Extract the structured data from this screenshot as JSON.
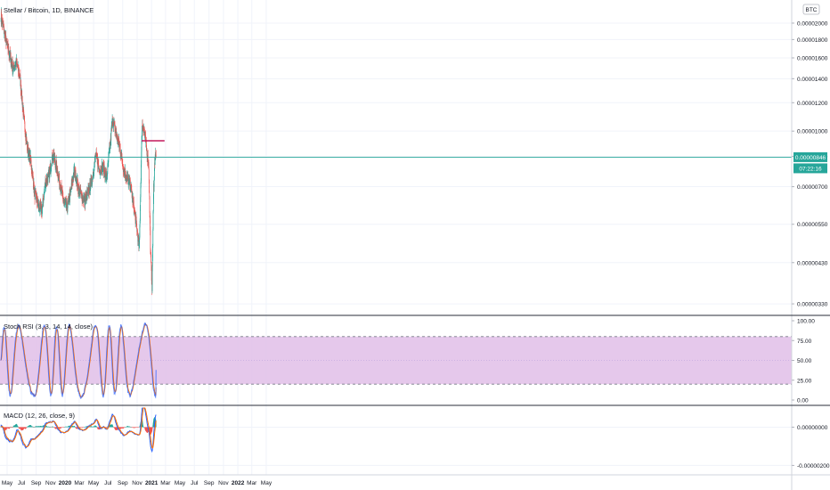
{
  "header": {
    "symbol_title": "Stellar / Bitcoin, 1D, BINANCE",
    "currency_badge": "BTC"
  },
  "price_pane": {
    "current_price_label": "0.00000846",
    "countdown_label": "07:22:16",
    "colors": {
      "up": "#26a69a",
      "down": "#ef5350",
      "price_line": "#26a69a",
      "drawing": "#c2185b"
    }
  },
  "stoch_pane": {
    "title": "Stoch RSI (3, 3, 14, 14, close)",
    "colors": {
      "k": "#2962ff",
      "d": "#ff6d00",
      "band_fill": "#e1bee7"
    }
  },
  "macd_pane": {
    "title": "MACD (12, 26, close, 9)",
    "colors": {
      "macd": "#2962ff",
      "signal": "#ff6d00",
      "hist_up": "#26a69a",
      "hist_down": "#ef5350"
    }
  },
  "chart_data": [
    {
      "type": "candlestick",
      "title": "Stellar / Bitcoin, 1D, BINANCE",
      "x_axis_ticks": [
        "May",
        "Jul",
        "Sep",
        "Nov",
        "2020",
        "Mar",
        "May",
        "Jul",
        "Sep",
        "Nov",
        "2021",
        "Mar",
        "May",
        "Jul",
        "Sep",
        "Nov",
        "2022",
        "Mar",
        "May"
      ],
      "y_axis_ticks": [
        "0.00000330",
        "0.00000430",
        "0.00000550",
        "0.00000700",
        "0.00000850",
        "0.00001000",
        "0.00001200",
        "0.00001400",
        "0.00001600",
        "0.00001800",
        "0.00002000"
      ],
      "y_scale": "log",
      "ylim": [
        3.1e-06,
        2.32e-05
      ],
      "current_price": 8.46e-06,
      "series_close": [
        {
          "x": "2019-04-05",
          "y": 2.1e-05
        },
        {
          "x": "2019-04-25",
          "y": 1.8e-05
        },
        {
          "x": "2019-05-10",
          "y": 1.65e-05
        },
        {
          "x": "2019-05-25",
          "y": 1.5e-05
        },
        {
          "x": "2019-06-10",
          "y": 1.55e-05
        },
        {
          "x": "2019-06-25",
          "y": 1.4e-05
        },
        {
          "x": "2019-07-10",
          "y": 1.1e-05
        },
        {
          "x": "2019-07-25",
          "y": 9e-06
        },
        {
          "x": "2019-08-10",
          "y": 8.2e-06
        },
        {
          "x": "2019-08-25",
          "y": 6.7e-06
        },
        {
          "x": "2019-09-10",
          "y": 6.2e-06
        },
        {
          "x": "2019-09-25",
          "y": 6e-06
        },
        {
          "x": "2019-10-10",
          "y": 7.2e-06
        },
        {
          "x": "2019-10-25",
          "y": 7.5e-06
        },
        {
          "x": "2019-11-10",
          "y": 8.6e-06
        },
        {
          "x": "2019-11-25",
          "y": 8e-06
        },
        {
          "x": "2019-12-10",
          "y": 7.2e-06
        },
        {
          "x": "2019-12-25",
          "y": 6.4e-06
        },
        {
          "x": "2020-01-10",
          "y": 6.1e-06
        },
        {
          "x": "2020-01-25",
          "y": 6.8e-06
        },
        {
          "x": "2020-02-10",
          "y": 7.8e-06
        },
        {
          "x": "2020-02-25",
          "y": 7e-06
        },
        {
          "x": "2020-03-10",
          "y": 6.6e-06
        },
        {
          "x": "2020-03-25",
          "y": 6.4e-06
        },
        {
          "x": "2020-04-10",
          "y": 6.8e-06
        },
        {
          "x": "2020-04-25",
          "y": 7.4e-06
        },
        {
          "x": "2020-05-10",
          "y": 8.6e-06
        },
        {
          "x": "2020-05-25",
          "y": 7.8e-06
        },
        {
          "x": "2020-06-10",
          "y": 8e-06
        },
        {
          "x": "2020-06-25",
          "y": 7.4e-06
        },
        {
          "x": "2020-07-10",
          "y": 9.2e-06
        },
        {
          "x": "2020-07-20",
          "y": 1.08e-05
        },
        {
          "x": "2020-08-05",
          "y": 9.8e-06
        },
        {
          "x": "2020-08-20",
          "y": 9e-06
        },
        {
          "x": "2020-09-05",
          "y": 7.8e-06
        },
        {
          "x": "2020-09-20",
          "y": 7.4e-06
        },
        {
          "x": "2020-10-05",
          "y": 7e-06
        },
        {
          "x": "2020-10-20",
          "y": 6e-06
        },
        {
          "x": "2020-11-01",
          "y": 5.3e-06
        },
        {
          "x": "2020-11-10",
          "y": 4.7e-06
        },
        {
          "x": "2020-11-22",
          "y": 1.05e-05
        },
        {
          "x": "2020-12-01",
          "y": 1e-05
        },
        {
          "x": "2020-12-10",
          "y": 9e-06
        },
        {
          "x": "2020-12-20",
          "y": 8e-06
        },
        {
          "x": "2020-12-28",
          "y": 4.5e-06
        },
        {
          "x": "2021-01-03",
          "y": 3.7e-06
        },
        {
          "x": "2021-01-10",
          "y": 7e-06
        },
        {
          "x": "2021-01-16",
          "y": 8.6e-06
        },
        {
          "x": "2021-01-20",
          "y": 8.46e-06
        }
      ],
      "drawing": {
        "type": "horizontal_ray",
        "price": 9.4e-06,
        "start": "2020-11-20",
        "end": "2021-02-25"
      }
    },
    {
      "type": "line",
      "title": "Stoch RSI (3, 3, 14, 14, close)",
      "y_axis_ticks": [
        "0.00",
        "25.00",
        "50.00",
        "75.00",
        "100.00"
      ],
      "ylim": [
        0,
        100
      ],
      "bands": {
        "upper": 80,
        "lower": 20
      },
      "current_value": 75
    },
    {
      "type": "line",
      "title": "MACD (12, 26, close, 9)",
      "y_axis_ticks": [
        "-0.00000200",
        "0.00000000"
      ],
      "ylim": [
        -2.4e-06,
        1e-06
      ]
    }
  ]
}
